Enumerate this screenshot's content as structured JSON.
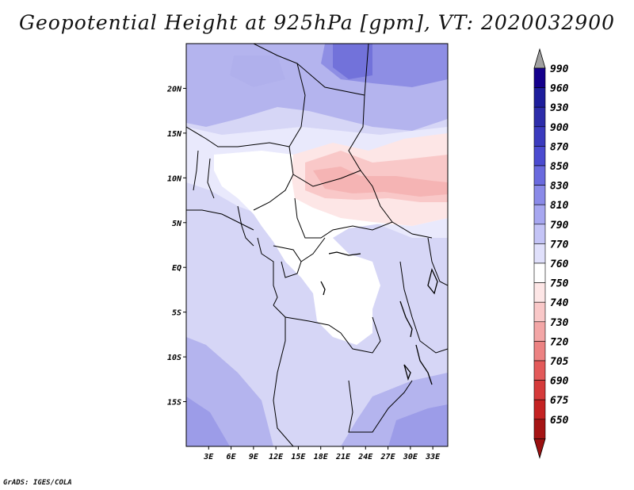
{
  "title": "Geopotential Height at 925hPa [gpm], VT: 2020032900",
  "credit": "GrADS: IGES/COLA",
  "map": {
    "lat_labels": [
      "20N",
      "15N",
      "10N",
      "5N",
      "EQ",
      "5S",
      "10S",
      "15S"
    ],
    "lon_labels": [
      "3E",
      "6E",
      "9E",
      "12E",
      "15E",
      "18E",
      "21E",
      "24E",
      "27E",
      "30E",
      "33E"
    ],
    "lat_values": [
      20,
      15,
      10,
      5,
      0,
      -5,
      -10,
      -15
    ],
    "lon_values": [
      3,
      6,
      9,
      12,
      15,
      18,
      21,
      24,
      27,
      30,
      33
    ],
    "lon_range": [
      0,
      35
    ],
    "lat_range": [
      -20,
      25
    ]
  },
  "colorbar": {
    "levels": [
      "990",
      "960",
      "930",
      "900",
      "870",
      "850",
      "830",
      "810",
      "790",
      "770",
      "760",
      "750",
      "740",
      "730",
      "720",
      "705",
      "690",
      "675",
      "650"
    ],
    "colors": [
      "#14008c",
      "#1e1e9c",
      "#2d2daa",
      "#3b3bbe",
      "#4b4bd0",
      "#6a6ade",
      "#8a8ae8",
      "#a7a7f0",
      "#c4c4f6",
      "#e0e0fb",
      "#ffffff",
      "#fde6e6",
      "#f9c8c8",
      "#f3a6a6",
      "#ec8282",
      "#e35a5a",
      "#d53a3a",
      "#c42222",
      "#a51414"
    ],
    "top_cap": "#a0a0a0",
    "bottom_cap": "#9a1010"
  }
}
